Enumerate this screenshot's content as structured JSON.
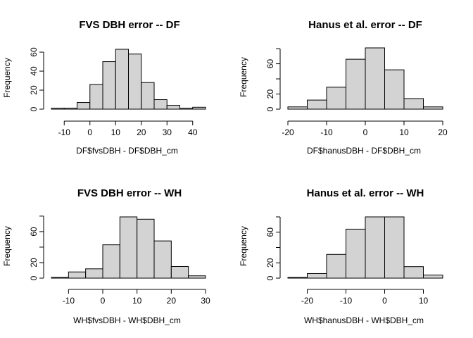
{
  "chart_data": [
    {
      "type": "histogram",
      "title": "FVS DBH error -- DF",
      "xlabel": "DF$fvsDBH - DF$DBH_cm",
      "ylabel": "Frequency",
      "bins": [
        {
          "start": -15,
          "end": -10,
          "count": 1
        },
        {
          "start": -10,
          "end": -5,
          "count": 1
        },
        {
          "start": -5,
          "end": 0,
          "count": 7
        },
        {
          "start": 0,
          "end": 5,
          "count": 26
        },
        {
          "start": 5,
          "end": 10,
          "count": 50
        },
        {
          "start": 10,
          "end": 15,
          "count": 63
        },
        {
          "start": 15,
          "end": 20,
          "count": 58
        },
        {
          "start": 20,
          "end": 25,
          "count": 28
        },
        {
          "start": 25,
          "end": 30,
          "count": 10
        },
        {
          "start": 30,
          "end": 35,
          "count": 4
        },
        {
          "start": 35,
          "end": 40,
          "count": 1
        },
        {
          "start": 40,
          "end": 45,
          "count": 2
        }
      ],
      "xticks": [
        -10,
        0,
        10,
        20,
        30,
        40
      ],
      "yticks": [
        0,
        20,
        40,
        60
      ]
    },
    {
      "type": "histogram",
      "title": "Hanus et al. error -- DF",
      "xlabel": "DF$hanusDBH - DF$DBH_cm",
      "ylabel": "Frequency",
      "bins": [
        {
          "start": -20,
          "end": -15,
          "count": 3
        },
        {
          "start": -15,
          "end": -10,
          "count": 12
        },
        {
          "start": -10,
          "end": -5,
          "count": 29
        },
        {
          "start": -5,
          "end": 0,
          "count": 66
        },
        {
          "start": 0,
          "end": 5,
          "count": 81
        },
        {
          "start": 5,
          "end": 10,
          "count": 52
        },
        {
          "start": 10,
          "end": 15,
          "count": 14
        },
        {
          "start": 15,
          "end": 20,
          "count": 3
        }
      ],
      "xticks": [
        -20,
        -10,
        0,
        10,
        20
      ],
      "yticks": [
        0,
        20,
        60
      ]
    },
    {
      "type": "histogram",
      "title": "FVS DBH error -- WH",
      "xlabel": "WH$fvsDBH - WH$DBH_cm",
      "ylabel": "Frequency",
      "bins": [
        {
          "start": -15,
          "end": -10,
          "count": 1
        },
        {
          "start": -10,
          "end": -5,
          "count": 8
        },
        {
          "start": -5,
          "end": 0,
          "count": 12
        },
        {
          "start": 0,
          "end": 5,
          "count": 43
        },
        {
          "start": 5,
          "end": 10,
          "count": 79
        },
        {
          "start": 10,
          "end": 15,
          "count": 76
        },
        {
          "start": 15,
          "end": 20,
          "count": 48
        },
        {
          "start": 20,
          "end": 25,
          "count": 15
        },
        {
          "start": 25,
          "end": 30,
          "count": 3
        }
      ],
      "xticks": [
        -10,
        0,
        10,
        20,
        30
      ],
      "yticks": [
        0,
        20,
        60
      ]
    },
    {
      "type": "histogram",
      "title": "Hanus et al. error -- WH",
      "xlabel": "WH$hanusDBH - WH$DBH_cm",
      "ylabel": "Frequency",
      "bins": [
        {
          "start": -25,
          "end": -20,
          "count": 1
        },
        {
          "start": -20,
          "end": -15,
          "count": 6
        },
        {
          "start": -15,
          "end": -10,
          "count": 31
        },
        {
          "start": -10,
          "end": -5,
          "count": 64
        },
        {
          "start": -5,
          "end": 0,
          "count": 80
        },
        {
          "start": 0,
          "end": 5,
          "count": 80
        },
        {
          "start": 5,
          "end": 10,
          "count": 15
        },
        {
          "start": 10,
          "end": 15,
          "count": 4
        }
      ],
      "xticks": [
        -20,
        -10,
        0,
        10
      ],
      "yticks": [
        0,
        20,
        60
      ]
    }
  ]
}
